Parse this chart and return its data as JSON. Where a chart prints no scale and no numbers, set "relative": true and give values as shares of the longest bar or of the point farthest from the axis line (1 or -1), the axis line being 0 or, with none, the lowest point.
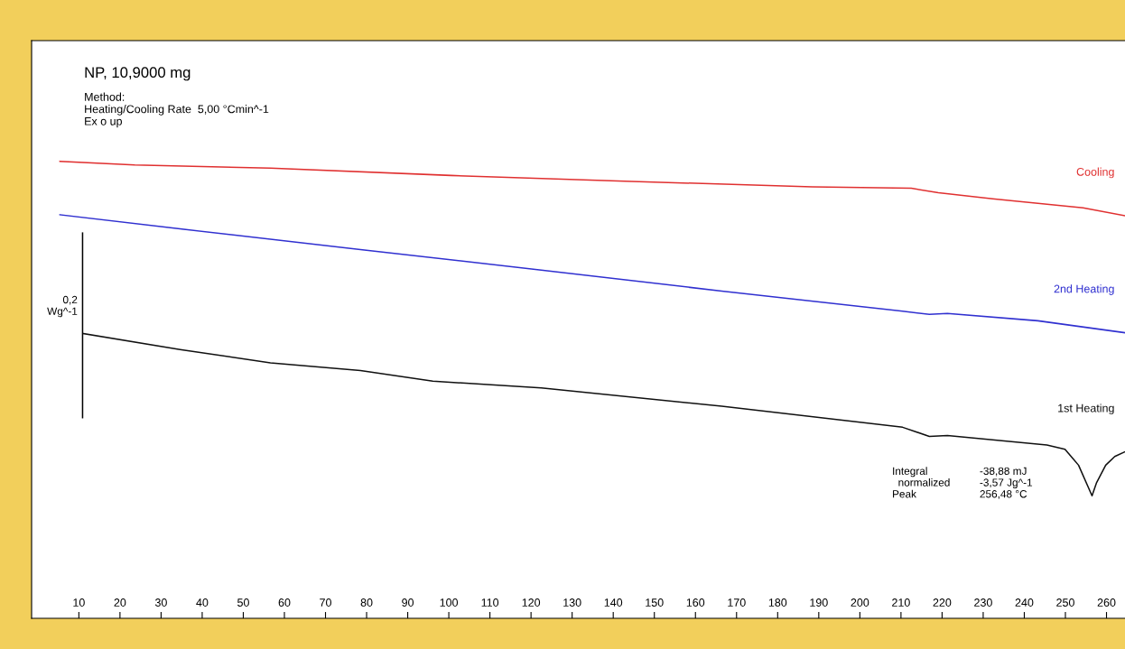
{
  "chart_data": {
    "type": "line",
    "title": "NP, 10,9000 mg",
    "subtitle": "Method:\nHeating/Cooling Rate  5,00 °Cmin^-1\nEx o up",
    "relative": true,
    "xlim": [
      -1.5,
      264.5
    ],
    "xticks": [
      10,
      20,
      30,
      40,
      50,
      60,
      70,
      80,
      90,
      100,
      110,
      120,
      130,
      140,
      150,
      160,
      170,
      180,
      190,
      200,
      210,
      220,
      230,
      240,
      250,
      260
    ],
    "grid": false,
    "legend": false,
    "annotations": [
      "0,2\nWg^-1",
      "Integral\n  normalized\nPeak",
      "-38,88 mJ\n-3,57 Jg^-1\n256,48 °C"
    ],
    "series": [
      {
        "name": "Cooling",
        "color": "#e03030",
        "x": [
          5.4,
          23.6,
          56.6,
          100.5,
          144.5,
          188.4,
          212.5,
          219.1,
          232.3,
          243.3,
          254.3,
          264.4
        ],
        "values": [
          1.0,
          0.992,
          0.985,
          0.969,
          0.956,
          0.944,
          0.941,
          0.931,
          0.918,
          0.908,
          0.898,
          0.881
        ]
      },
      {
        "name": "2nd Heating",
        "color": "#3030d0",
        "x": [
          5.4,
          34.6,
          78.5,
          122.5,
          166.4,
          210.4,
          216.9,
          221.3,
          243.3,
          264.4
        ],
        "values": [
          0.883,
          0.852,
          0.807,
          0.762,
          0.716,
          0.672,
          0.665,
          0.667,
          0.651,
          0.625
        ]
      },
      {
        "color": "#000000",
        "x": [
          10.9,
          10.9
        ],
        "values": [
          0.439,
          0.843
        ]
      },
      {
        "name": "1st Heating",
        "color": "#101010",
        "x": [
          11.1,
          34.6,
          56.6,
          78.5,
          96.1,
          122.5,
          166.4,
          210.4,
          216.9,
          221.3,
          245.5,
          249.9,
          253.2,
          256.48,
          257.6,
          259.8,
          262.0,
          264.4
        ],
        "values": [
          0.623,
          0.588,
          0.559,
          0.542,
          0.519,
          0.504,
          0.464,
          0.418,
          0.398,
          0.4,
          0.379,
          0.37,
          0.335,
          0.268,
          0.297,
          0.335,
          0.354,
          0.364
        ]
      }
    ]
  }
}
